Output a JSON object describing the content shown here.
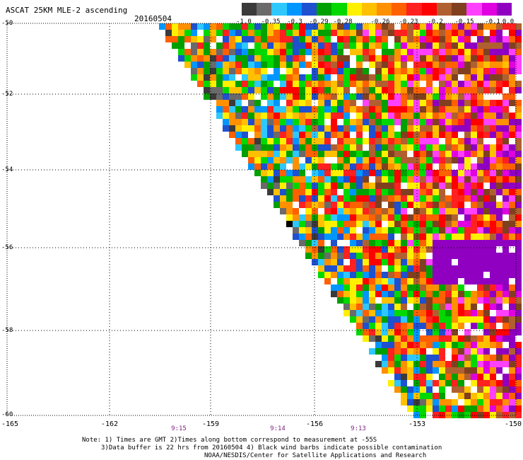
{
  "title": "ASCAT 25KM MLE-2 ascending",
  "date": "20160504",
  "legend": {
    "colors": [
      "#3a3a3a",
      "#6a6a6a",
      "#2ec8ff",
      "#0096ff",
      "#1e50d0",
      "#00a000",
      "#00d800",
      "#fff000",
      "#ffc000",
      "#ff9000",
      "#ff6000",
      "#ff2020",
      "#ff0000",
      "#b06030",
      "#804020",
      "#ff40ff",
      "#e000e0",
      "#9000c0"
    ],
    "labels": [
      "-1.0",
      "-0.35",
      "-0.3",
      "-0.29",
      "-0.28",
      "-0.26",
      "-0.23",
      "-0.2",
      "-0.15",
      "-0.1",
      "0.0"
    ]
  },
  "y_axis": {
    "labels": [
      "-50",
      "-52",
      "-54",
      "-56",
      "-58",
      "-60"
    ]
  },
  "x_axis": {
    "labels": [
      "-165",
      "-162",
      "-159",
      "-156",
      "-153",
      "-150"
    ]
  },
  "times": [
    "9:15",
    "9:14",
    "9:13"
  ],
  "notes": {
    "line1": "Note: 1) Times are GMT 2)Times along bottom correspond to measurement at -55S",
    "line2": "3)Data buffer is 22 hrs from 20160504 4) Black wind barbs indicate possible contamination",
    "line3": "NOAA/NESDIS/Center for Satellite Applications and Research"
  }
}
